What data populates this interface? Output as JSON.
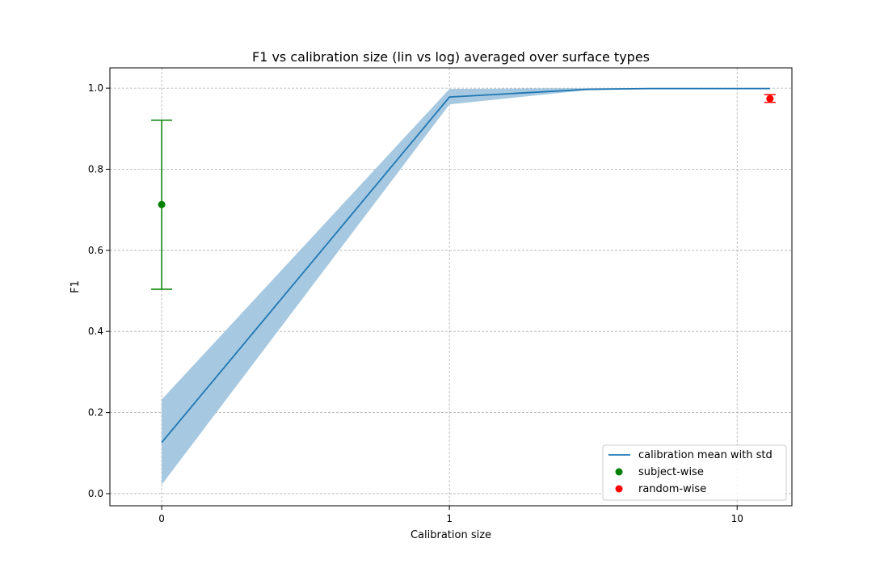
{
  "chart_data": {
    "type": "line",
    "title": "F1 vs calibration size (lin vs log) averaged over surface types",
    "xlabel": "Calibration size",
    "ylabel": "F1",
    "x_scale": "symlog",
    "x_linthresh": 1,
    "xlim": [
      -0.18,
      15.5
    ],
    "ylim": [
      -0.03,
      1.05
    ],
    "x_ticks": [
      0,
      1,
      10
    ],
    "x_tick_labels": [
      "0",
      "1",
      "10"
    ],
    "y_ticks": [
      0.0,
      0.2,
      0.4,
      0.6,
      0.8,
      1.0
    ],
    "y_tick_labels": [
      "0.0",
      "0.2",
      "0.4",
      "0.6",
      "0.8",
      "1.0"
    ],
    "grid": true,
    "legend_position": "bottom-right",
    "calibration": {
      "name": "calibration mean with std",
      "color": "#1f77b4",
      "band_color": "#a6c8e0",
      "x": [
        0,
        1,
        3,
        5,
        10,
        13
      ],
      "mean": [
        0.126,
        0.978,
        0.997,
        0.999,
        0.999,
        0.999
      ],
      "lower": [
        0.022,
        0.96,
        0.995,
        0.998,
        0.998,
        0.998
      ],
      "upper": [
        0.232,
        0.998,
        1.0,
        1.0,
        1.0,
        1.0
      ]
    },
    "subject_wise": {
      "name": "subject-wise",
      "color": "#008000",
      "x": 0,
      "y": 0.713,
      "err_low": 0.504,
      "err_high": 0.921
    },
    "random_wise": {
      "name": "random-wise",
      "color": "#ff0000",
      "x": 13,
      "y": 0.974,
      "err_low": 0.965,
      "err_high": 0.984
    }
  }
}
